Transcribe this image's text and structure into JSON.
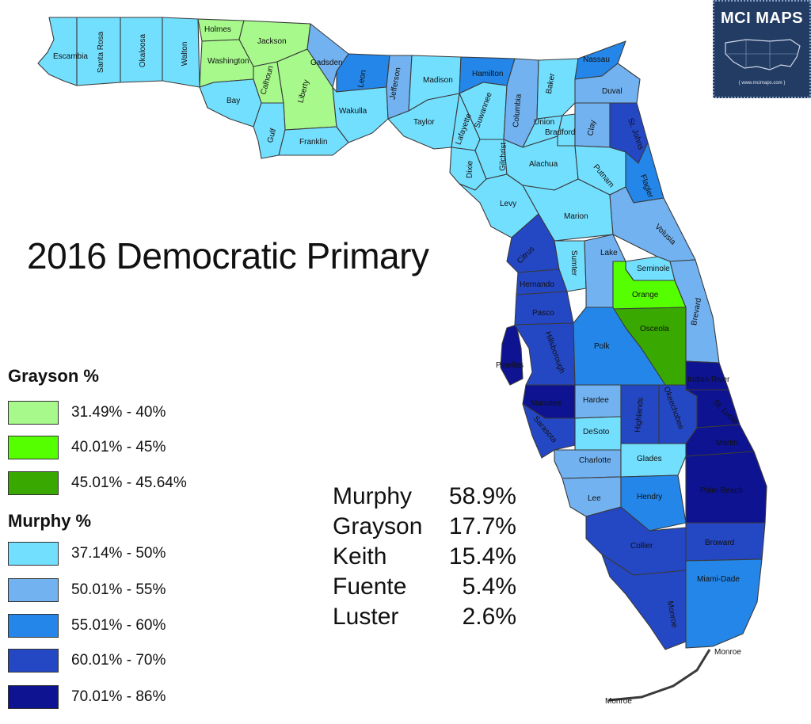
{
  "title": "2016 Democratic Primary",
  "badge": {
    "title": "MCI MAPS",
    "url": "{ www.mcimaps.com }"
  },
  "legend": {
    "grayson_header": "Grayson %",
    "grayson": [
      {
        "label": "31.49% - 40%",
        "color": "#a6f98a"
      },
      {
        "label": "40.01% - 45%",
        "color": "#55ff00"
      },
      {
        "label": "45.01% - 45.64%",
        "color": "#39a800"
      }
    ],
    "murphy_header": "Murphy %",
    "murphy": [
      {
        "label": "37.14% - 50%",
        "color": "#73dfff"
      },
      {
        "label": "50.01% - 55%",
        "color": "#73b2f0"
      },
      {
        "label": "55.01% - 60%",
        "color": "#2486e8"
      },
      {
        "label": "60.01% - 70%",
        "color": "#2447c4"
      },
      {
        "label": "70.01% - 86%",
        "color": "#0d1391"
      }
    ]
  },
  "results": [
    {
      "name": "Murphy",
      "pct": "58.9%"
    },
    {
      "name": "Grayson",
      "pct": "17.7%"
    },
    {
      "name": "Keith",
      "pct": "15.4%"
    },
    {
      "name": "Fuente",
      "pct": "5.4%"
    },
    {
      "name": "Luster",
      "pct": "2.6%"
    }
  ],
  "counties": [
    "Escambia",
    "Santa Rosa",
    "Okaloosa",
    "Walton",
    "Holmes",
    "Jackson",
    "Washington",
    "Bay",
    "Calhoun",
    "Liberty",
    "Gulf",
    "Franklin",
    "Gadsden",
    "Leon",
    "Wakulla",
    "Jefferson",
    "Madison",
    "Taylor",
    "Hamilton",
    "Suwannee",
    "Lafayette",
    "Columbia",
    "Dixie",
    "Gilchrist",
    "Union",
    "Bradford",
    "Baker",
    "Nassau",
    "Duval",
    "Clay",
    "St. Johns",
    "Alachua",
    "Putnam",
    "Flagler",
    "Levy",
    "Marion",
    "Volusia",
    "Citrus",
    "Sumter",
    "Lake",
    "Seminole",
    "Hernando",
    "Orange",
    "Pasco",
    "Brevard",
    "Osceola",
    "Pinellas",
    "Hillsborough",
    "Polk",
    "Indian River",
    "Manatee",
    "Hardee",
    "Highlands",
    "Okeechobee",
    "St. Lucie",
    "Sarasota",
    "DeSoto",
    "Martin",
    "Charlotte",
    "Glades",
    "Palm Beach",
    "Lee",
    "Hendry",
    "Collier",
    "Broward",
    "Miami-Dade",
    "Monroe",
    "Monroe"
  ]
}
